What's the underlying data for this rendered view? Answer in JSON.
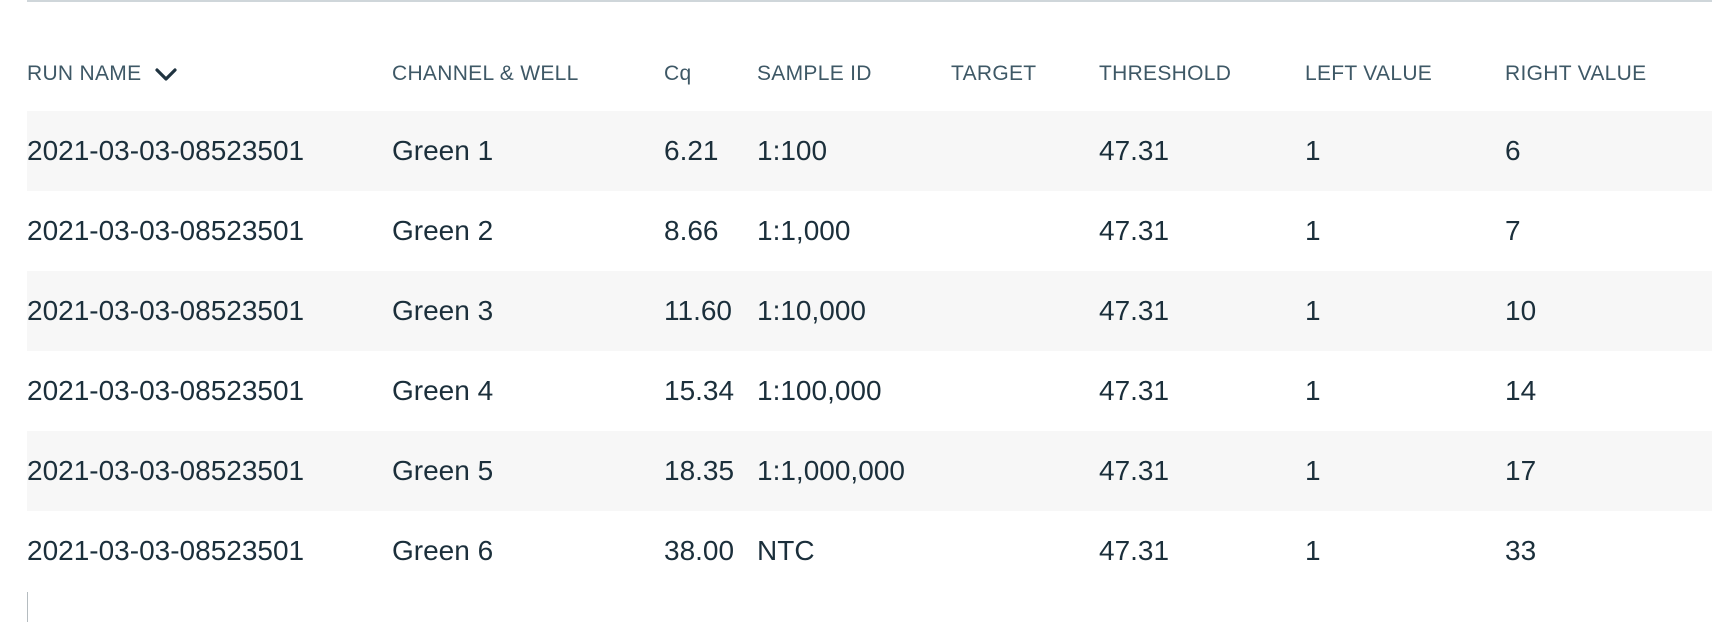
{
  "table": {
    "columns": [
      {
        "key": "run_name",
        "label": "RUN NAME",
        "sortable": true,
        "sort_icon": "chevron-down-icon"
      },
      {
        "key": "channel_well",
        "label": "CHANNEL & WELL"
      },
      {
        "key": "cq",
        "label": "Cq"
      },
      {
        "key": "sample_id",
        "label": "SAMPLE ID"
      },
      {
        "key": "target",
        "label": "TARGET"
      },
      {
        "key": "threshold",
        "label": "THRESHOLD"
      },
      {
        "key": "left_value",
        "label": "LEFT VALUE"
      },
      {
        "key": "right_value",
        "label": "RIGHT VALUE"
      }
    ],
    "rows": [
      {
        "run_name": "2021-03-03-08523501",
        "channel_well": "Green 1",
        "cq": "6.21",
        "sample_id": "1:100",
        "target": "",
        "threshold": "47.31",
        "left_value": "1",
        "right_value": "6"
      },
      {
        "run_name": "2021-03-03-08523501",
        "channel_well": "Green 2",
        "cq": "8.66",
        "sample_id": "1:1,000",
        "target": "",
        "threshold": "47.31",
        "left_value": "1",
        "right_value": "7"
      },
      {
        "run_name": "2021-03-03-08523501",
        "channel_well": "Green 3",
        "cq": "11.60",
        "sample_id": "1:10,000",
        "target": "",
        "threshold": "47.31",
        "left_value": "1",
        "right_value": "10"
      },
      {
        "run_name": "2021-03-03-08523501",
        "channel_well": "Green 4",
        "cq": "15.34",
        "sample_id": "1:100,000",
        "target": "",
        "threshold": "47.31",
        "left_value": "1",
        "right_value": "14"
      },
      {
        "run_name": "2021-03-03-08523501",
        "channel_well": "Green 5",
        "cq": "18.35",
        "sample_id": "1:1,000,000",
        "target": "",
        "threshold": "47.31",
        "left_value": "1",
        "right_value": "17"
      },
      {
        "run_name": "2021-03-03-08523501",
        "channel_well": "Green 6",
        "cq": "38.00",
        "sample_id": "NTC",
        "target": "",
        "threshold": "47.31",
        "left_value": "1",
        "right_value": "33"
      }
    ]
  },
  "colors": {
    "header_text": "#3e5866",
    "cell_text": "#1b2f3b",
    "stripe": "#f7f7f7",
    "divider": "#cfd6da"
  }
}
